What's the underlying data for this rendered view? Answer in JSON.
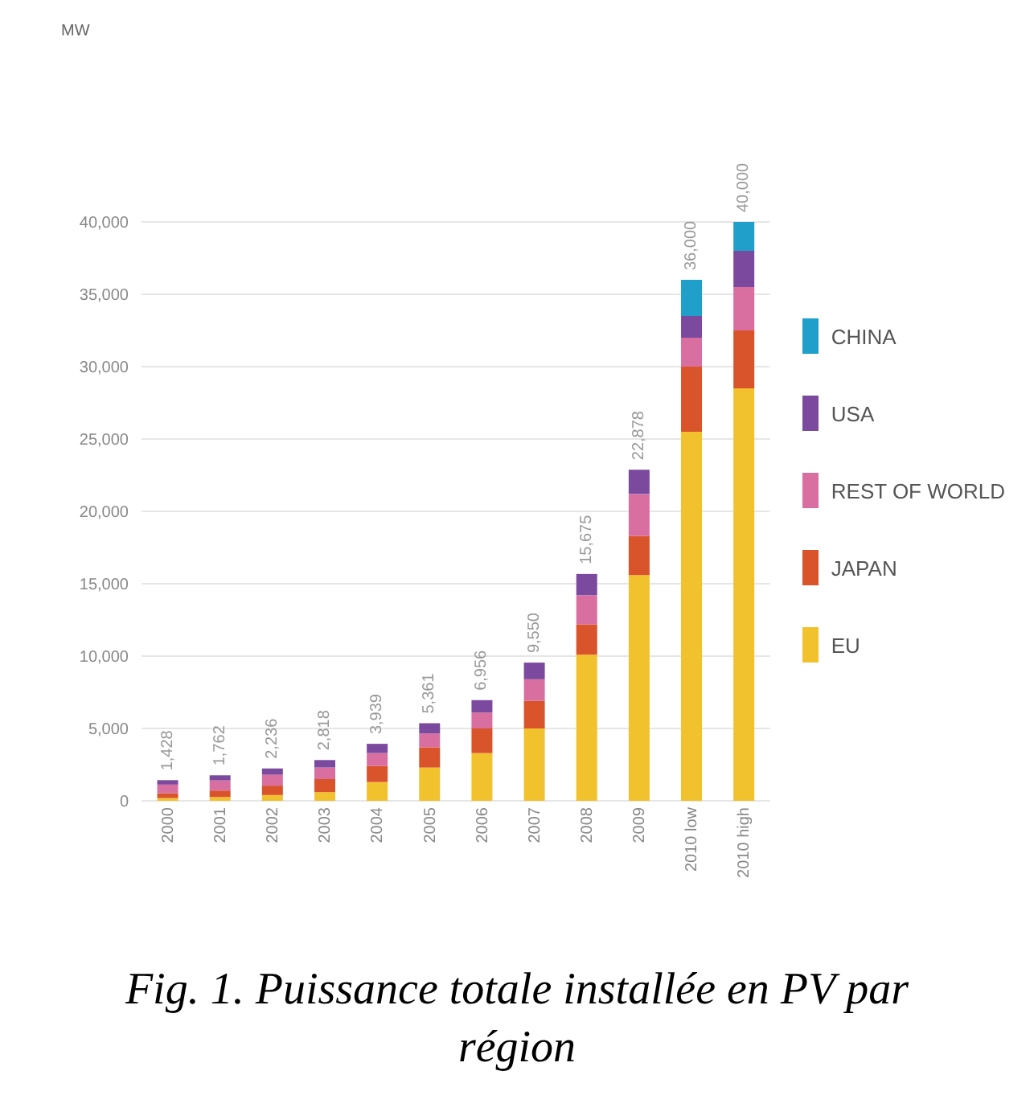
{
  "chart_data": {
    "type": "bar",
    "stacked": true,
    "annotations": [
      "MW",
      "Fig. 1. Puissance totale installée en PV par région"
    ],
    "categories": [
      "2000",
      "2001",
      "2002",
      "2003",
      "2004",
      "2005",
      "2006",
      "2007",
      "2008",
      "2009",
      "2010 low",
      "2010 high"
    ],
    "series": [
      {
        "name": "EU",
        "color": "#f2c12e",
        "values": [
          190,
          260,
          400,
          600,
          1300,
          2300,
          3300,
          5000,
          10100,
          15600,
          25500,
          28500
        ]
      },
      {
        "name": "JAPAN",
        "color": "#d9532b",
        "values": [
          330,
          450,
          650,
          900,
          1100,
          1400,
          1700,
          1900,
          2100,
          2700,
          4500,
          4000
        ]
      },
      {
        "name": "REST OF WORLD",
        "color": "#d96fa0",
        "values": [
          600,
          700,
          750,
          800,
          900,
          950,
          1100,
          1500,
          2000,
          2900,
          2000,
          3000
        ]
      },
      {
        "name": "USA",
        "color": "#7b4a9e",
        "values": [
          308,
          352,
          436,
          518,
          639,
          711,
          856,
          1150,
          1475,
          1678,
          1500,
          2500
        ]
      },
      {
        "name": "CHINA",
        "color": "#1f9fc9",
        "values": [
          0,
          0,
          0,
          0,
          0,
          0,
          0,
          0,
          0,
          0,
          2500,
          2000
        ]
      }
    ],
    "totals": [
      "1,428",
      "1,762",
      "2,236",
      "2,818",
      "3,939",
      "5,361",
      "6,956",
      "9,550",
      "15,675",
      "22,878",
      "36,000",
      "40,000"
    ],
    "ylim": [
      0,
      40000
    ],
    "yticks": [
      0,
      {
        "value": 5000,
        "label": "5,000"
      },
      {
        "value": 10000,
        "label": "10,000"
      },
      {
        "value": 15000,
        "label": "15,000"
      },
      {
        "value": 20000,
        "label": "20,000"
      },
      {
        "value": 25000,
        "label": "25,000"
      },
      {
        "value": 30000,
        "label": "30,000"
      },
      {
        "value": 35000,
        "label": "35,000"
      },
      {
        "value": 40000,
        "label": "40,000"
      }
    ],
    "grid": "y",
    "legend": "right"
  }
}
